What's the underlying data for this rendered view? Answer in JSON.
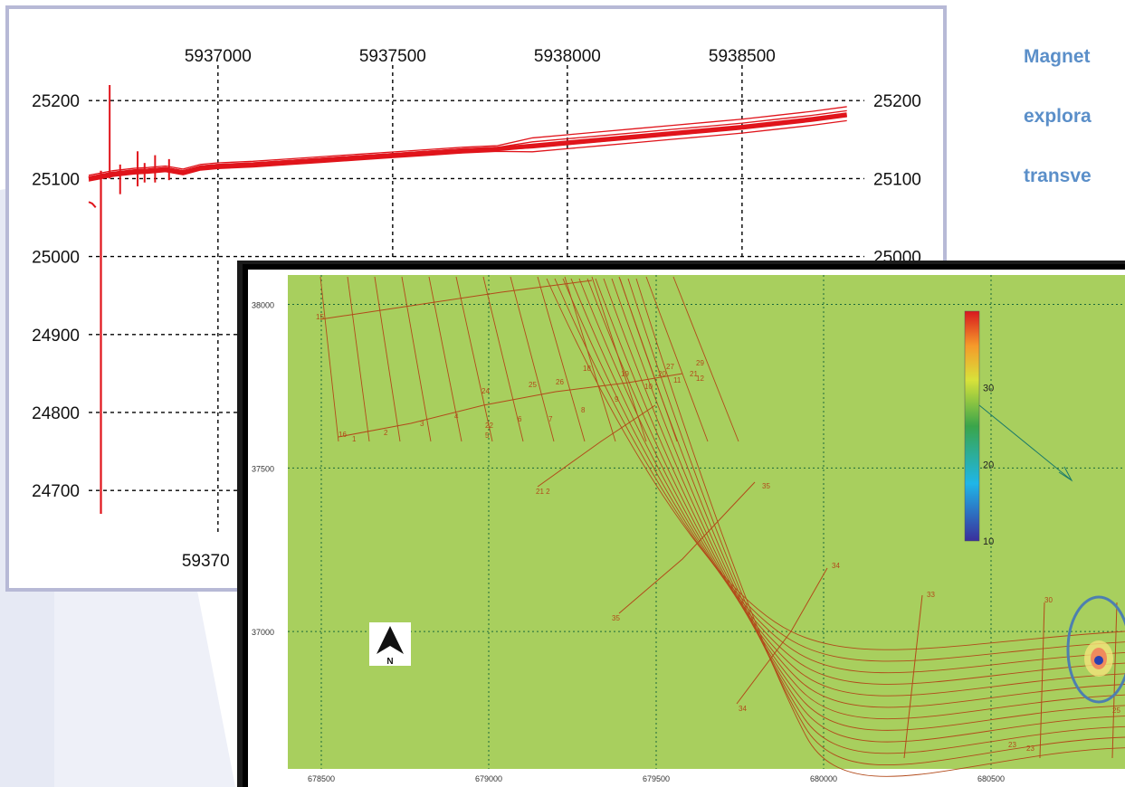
{
  "title_lines": [
    "Magnet",
    "explora",
    "transve"
  ],
  "chart_data": [
    {
      "type": "line",
      "title": "",
      "xlabel": "",
      "ylabel": "",
      "x_ticks": [
        "5937000",
        "5937500",
        "5938000",
        "5938500"
      ],
      "x_ticks_bottom_partial": "59370",
      "y_ticks": [
        "25200",
        "25100",
        "25000",
        "24900",
        "24800",
        "24700"
      ],
      "y_ticks_right_visible": [
        "25200",
        "25100",
        "25000"
      ],
      "xlim": [
        5936630,
        5938850
      ],
      "ylim": [
        24670,
        25220
      ],
      "grid": true,
      "series_color": "#e0141b",
      "series": [
        {
          "x": [
            5936630,
            5936700,
            5936760,
            5936800,
            5936850,
            5936900,
            5936950,
            5937000,
            5937100,
            5937200,
            5937300,
            5937400,
            5937500,
            5937600,
            5937700,
            5937800,
            5937900,
            5938000,
            5938100,
            5938200,
            5938300,
            5938400,
            5938500,
            5938600,
            5938700,
            5938800
          ],
          "values": [
            25100,
            25106,
            25109,
            25110,
            25112,
            25108,
            25114,
            25116,
            25118,
            25121,
            25124,
            25127,
            25130,
            25133,
            25136,
            25138,
            25142,
            25146,
            25150,
            25154,
            25158,
            25162,
            25166,
            25171,
            25176,
            25182
          ]
        }
      ]
    },
    {
      "type": "heatmap",
      "title": "",
      "x_ticks": [
        "678500",
        "679000",
        "679500",
        "680000",
        "680500"
      ],
      "y_ticks": [
        "38000",
        "37500",
        "37000"
      ],
      "xlim": [
        678400,
        680900
      ],
      "ylim": [
        36580,
        38090
      ],
      "colorbar": {
        "ticks": [
          "30",
          "20",
          "10"
        ],
        "range": [
          10,
          40
        ]
      },
      "background_color": "#a8cf5e",
      "line_color": "#b24a1a",
      "line_labels": [
        "15",
        "16",
        "1",
        "2",
        "3",
        "4",
        "22",
        "5",
        "6",
        "7",
        "8",
        "9",
        "10",
        "11",
        "12",
        "18",
        "19",
        "20",
        "21",
        "24",
        "25",
        "26",
        "27",
        "29",
        "21 2",
        "35",
        "35",
        "34",
        "34",
        "33",
        "30",
        "23",
        "23",
        "25"
      ]
    }
  ],
  "north_arrow_label": "N",
  "colors": {
    "panel_border": "#b7b9d6",
    "accent": "#5b8fc9",
    "highlight_circle": "#4d7fb0"
  }
}
